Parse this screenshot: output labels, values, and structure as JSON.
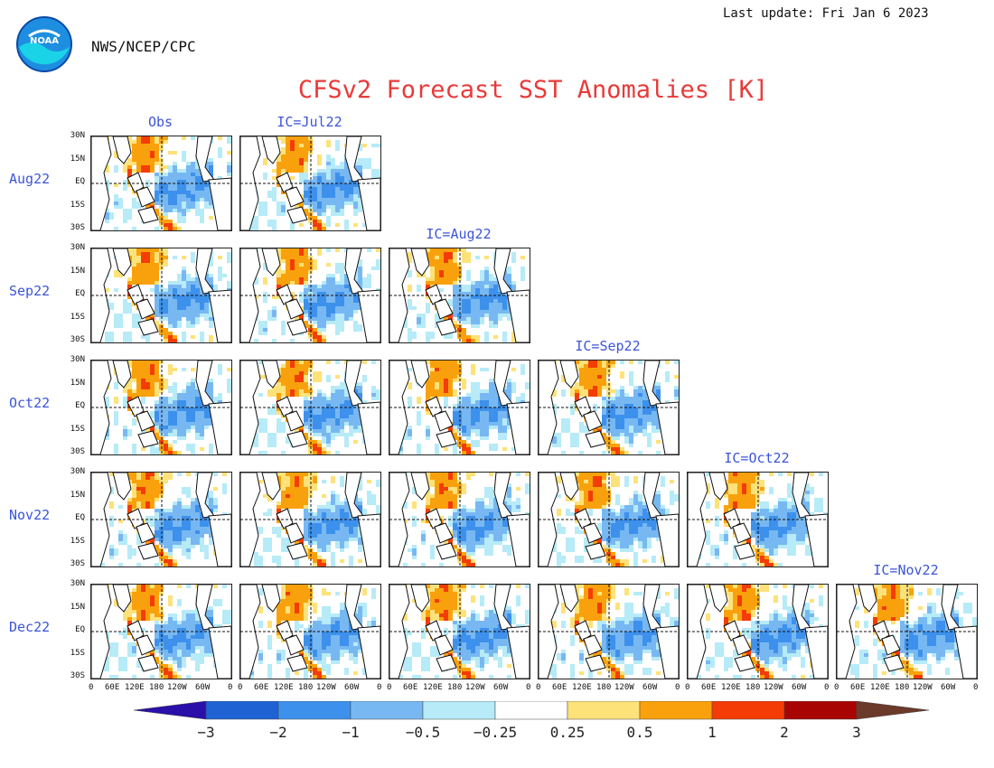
{
  "header": {
    "last_update": "Last update: Fri Jan 6 2023",
    "agency": "NWS/NCEP/CPC",
    "logo_text": "NOAA"
  },
  "chart_data": {
    "type": "heatmap",
    "title": "CFSv2 Forecast SST Anomalies [K]",
    "columns": [
      "Obs",
      "IC=Jul22",
      "IC=Aug22",
      "IC=Sep22",
      "IC=Oct22",
      "IC=Nov22"
    ],
    "rows": [
      "Aug22",
      "Sep22",
      "Oct22",
      "Nov22",
      "Dec22"
    ],
    "lat_ticks": [
      "30N",
      "15N",
      "EQ",
      "15S",
      "30S"
    ],
    "lon_ticks": [
      "0",
      "60E",
      "120E",
      "180",
      "120W",
      "60W",
      "0"
    ],
    "colorbar": {
      "levels": [
        "−3",
        "−2",
        "−1",
        "−0.5",
        "−0.25",
        "0.25",
        "0.5",
        "1",
        "2",
        "3"
      ],
      "colors": [
        "#2a0fa8",
        "#1f62d4",
        "#3d91ec",
        "#78b8f2",
        "#b6ebf7",
        "#ffffff",
        "#fde27a",
        "#f9a10c",
        "#f33c06",
        "#a90404",
        "#6b3a2a"
      ]
    },
    "panels": [
      {
        "row": 0,
        "col": 0
      },
      {
        "row": 0,
        "col": 1
      },
      {
        "row": 1,
        "col": 0
      },
      {
        "row": 1,
        "col": 1
      },
      {
        "row": 1,
        "col": 2
      },
      {
        "row": 2,
        "col": 0
      },
      {
        "row": 2,
        "col": 1
      },
      {
        "row": 2,
        "col": 2
      },
      {
        "row": 2,
        "col": 3
      },
      {
        "row": 3,
        "col": 0
      },
      {
        "row": 3,
        "col": 1
      },
      {
        "row": 3,
        "col": 2
      },
      {
        "row": 3,
        "col": 3
      },
      {
        "row": 3,
        "col": 4
      },
      {
        "row": 4,
        "col": 0
      },
      {
        "row": 4,
        "col": 1
      },
      {
        "row": 4,
        "col": 2
      },
      {
        "row": 4,
        "col": 3
      },
      {
        "row": 4,
        "col": 4
      },
      {
        "row": 4,
        "col": 5
      }
    ]
  }
}
